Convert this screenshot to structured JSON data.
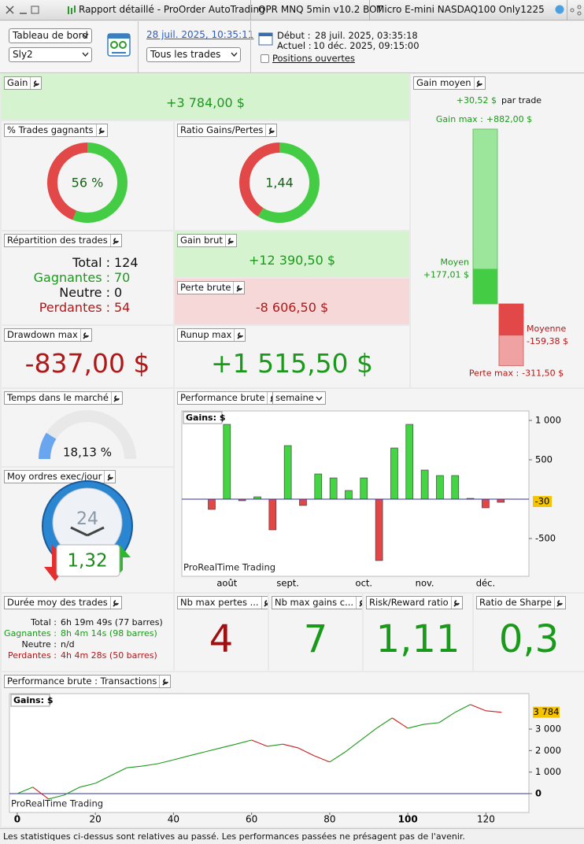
{
  "title_bar": {
    "tabs": [
      "Rapport détaillé - ProOrder AutoTrading",
      "OPR MNQ 5min v10.2 BOT",
      "Micro E-mini NASDAQ100 Only1225"
    ]
  },
  "toolbar": {
    "view": "Tableau de bord",
    "account": "Sly2",
    "report_time": "28 juil. 2025, 10:35:11",
    "filter": "Tous les trades",
    "start_label": "Début :",
    "start": "28 juil. 2025, 03:35:18",
    "current_label": "Actuel :",
    "current": "10 déc. 2025, 09:15:00",
    "open_positions": "Positions ouvertes"
  },
  "tiles": {
    "gain": {
      "header": "Gain",
      "value": "+3 784,00 $"
    },
    "avg_gain": {
      "header": "Gain moyen",
      "per_trade": "+30,52 $",
      "per_trade_unit": "par trade",
      "max_gain": {
        "caption": "Gain max :",
        "value": 882,
        "label": "+882,00 $"
      },
      "avg_win": {
        "caption": "Moyen",
        "value": 177.01,
        "label": "+177,01 $"
      },
      "avg_loss": {
        "caption": "Moyenne",
        "value": -159.38,
        "label": "-159,38 $"
      },
      "max_loss": {
        "caption": "Perte max :",
        "value": -311.5,
        "label": "-311,50 $"
      }
    },
    "win_rate": {
      "header": "% Trades gagnants",
      "value": 56,
      "label": "56 %"
    },
    "profit_ratio": {
      "header": "Ratio Gains/Pertes",
      "value": 1.44,
      "label": "1,44"
    },
    "breakdown": {
      "header": "Répartition des trades",
      "rows": [
        [
          "Total :",
          "124"
        ],
        [
          "Gagnantes :",
          "70"
        ],
        [
          "Neutre :",
          "0"
        ],
        [
          "Perdantes :",
          "54"
        ]
      ]
    },
    "gross_gain": {
      "header": "Gain brut",
      "value": "+12 390,50 $"
    },
    "gross_loss": {
      "header": "Perte brute",
      "value": "-8 606,50 $"
    },
    "drawdown": {
      "header": "Drawdown max",
      "value": "-837,00 $"
    },
    "runup": {
      "header": "Runup max",
      "value": "+1 515,50 $"
    },
    "time_in_market": {
      "header": "Temps dans le marché",
      "value": 18.13,
      "label": "18,13 %"
    },
    "orders_per_day": {
      "header": "Moy ordres exec/jour",
      "clock": "24",
      "value": "1,32"
    },
    "weekly": {
      "header": "Performance brute",
      "period": "semaine"
    },
    "duration": {
      "header": "Durée moy des trades",
      "rows": [
        [
          "Total :",
          "6h 19m 49s (77 barres)"
        ],
        [
          "Gagnantes :",
          "8h 4m 14s (98 barres)"
        ],
        [
          "Neutre :",
          "n/d"
        ],
        [
          "Perdantes :",
          "4h 4m 28s (50 barres)"
        ]
      ]
    },
    "max_losses": {
      "header": "Nb max pertes ...",
      "value": "4"
    },
    "max_gains": {
      "header": "Nb max gains c...",
      "value": "7"
    },
    "risk_reward": {
      "header": "Risk/Reward ratio",
      "value": "1,11"
    },
    "sharpe": {
      "header": "Ratio de Sharpe",
      "value": "0,3"
    },
    "equity": {
      "header": "Performance brute : Transactions"
    }
  },
  "footer": "Les statistiques ci-dessus sont relatives au passé. Les performances passées ne présagent pas de l'avenir.",
  "chart_data": [
    {
      "type": "bar",
      "title": "Gains: $",
      "watermark": "ProRealTime Trading",
      "categories": [
        null,
        "août",
        null,
        null,
        null,
        "sept.",
        null,
        null,
        null,
        null,
        "oct.",
        null,
        null,
        null,
        "nov.",
        null,
        null,
        null,
        "déc.",
        null
      ],
      "values": [
        -130,
        950,
        -20,
        30,
        -390,
        680,
        -80,
        320,
        270,
        110,
        270,
        -780,
        650,
        950,
        370,
        300,
        300,
        10,
        -110,
        -40
      ],
      "colors": {
        "positive": "#44d444",
        "negative": "#e24646"
      },
      "ylim": [
        -980,
        1120
      ],
      "yticks": [
        -500,
        500,
        {
          "value": 1000,
          "label": "1 000"
        }
      ],
      "grid": false,
      "marker": -30
    },
    {
      "type": "line",
      "title": "Gains: $",
      "watermark": "ProRealTime Trading",
      "x": [
        0,
        4,
        8,
        12,
        16,
        20,
        24,
        28,
        32,
        36,
        40,
        44,
        48,
        52,
        56,
        60,
        64,
        68,
        72,
        76,
        80,
        84,
        88,
        92,
        96,
        100,
        104,
        108,
        112,
        116,
        120,
        124
      ],
      "values": [
        0,
        300,
        -250,
        -70,
        300,
        480,
        840,
        1200,
        1280,
        1390,
        1570,
        1760,
        1940,
        2120,
        2300,
        2490,
        2200,
        2300,
        2120,
        1760,
        1470,
        1940,
        2490,
        3040,
        3520,
        3040,
        3220,
        3300,
        3770,
        4140,
        3850,
        3784
      ],
      "colors": {
        "up": "#1a9a1a",
        "down": "#c81e1e"
      },
      "xlim": [
        -2,
        131
      ],
      "xticks": [
        0,
        20,
        40,
        60,
        80,
        100,
        120
      ],
      "ylim": [
        -880,
        4650
      ],
      "yticks": [
        0,
        {
          "value": 1000,
          "label": "1 000"
        },
        {
          "value": 2000,
          "label": "2 000"
        },
        {
          "value": 3000,
          "label": "3 000"
        }
      ],
      "grid": false,
      "marker": {
        "value": 3784,
        "label": "3 784"
      }
    }
  ]
}
